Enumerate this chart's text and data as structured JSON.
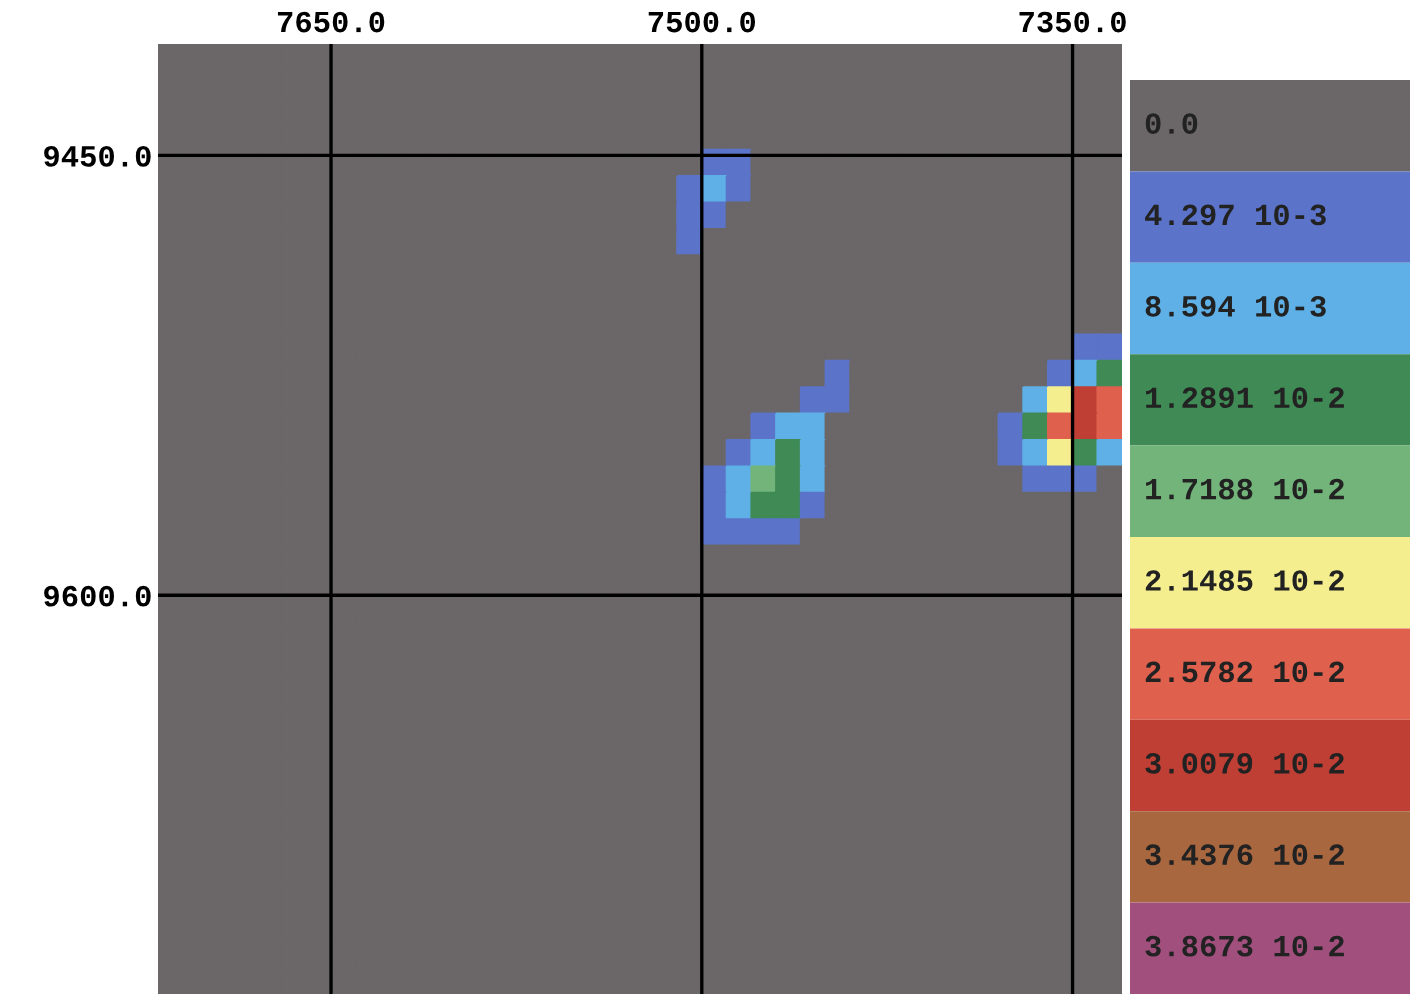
{
  "chart_data": {
    "type": "heatmap",
    "xlim": [
      7720,
      7330
    ],
    "ylim": [
      9736,
      9412
    ],
    "xticks": [
      {
        "value": 7650,
        "label": "7650.0"
      },
      {
        "value": 7500,
        "label": "7500.0"
      },
      {
        "value": 7350,
        "label": "7350.0"
      }
    ],
    "yticks": [
      {
        "value": 9450,
        "label": "9450.0"
      },
      {
        "value": 9600,
        "label": "9600.0"
      }
    ],
    "grid": true,
    "clim": [
      -0.0021485,
      0.0408215
    ],
    "cticks": [
      {
        "value": 0,
        "label": "0.0"
      },
      {
        "value": 0.004297,
        "label": "4.297 10-3"
      },
      {
        "value": 0.008594,
        "label": "8.594 10-3"
      },
      {
        "value": 0.012891,
        "label": "1.2891 10-2"
      },
      {
        "value": 0.017188,
        "label": "1.7188 10-2"
      },
      {
        "value": 0.021485,
        "label": "2.1485 10-2"
      },
      {
        "value": 0.025782,
        "label": "2.5782 10-2"
      },
      {
        "value": 0.030079,
        "label": "3.0079 10-2"
      },
      {
        "value": 0.034376,
        "label": "3.4376 10-2"
      },
      {
        "value": 0.038673,
        "label": "3.8673 10-2"
      }
    ],
    "colors": [
      "#6b6769",
      "#5b74c9",
      "#5fb0e6",
      "#3f8a55",
      "#72b47a",
      "#f4ee8e",
      "#e0604e",
      "#bf3f35",
      "#a8673f",
      "#a1507e"
    ],
    "cells": [
      [
        0,
        0,
        0,
        0,
        0,
        0,
        0,
        0,
        0,
        0,
        0,
        0,
        0,
        0,
        0,
        0,
        0,
        0,
        0,
        0,
        0,
        0,
        0,
        0,
        0,
        0,
        0,
        0,
        0,
        0,
        0,
        0,
        0,
        0,
        0,
        0,
        0,
        0,
        0
      ],
      [
        0,
        0,
        0,
        0,
        0,
        0,
        0,
        0,
        0,
        0,
        0,
        0,
        0,
        0,
        0,
        0,
        0,
        0,
        0,
        0,
        0,
        0,
        0,
        0,
        0,
        0,
        0,
        0,
        0,
        0,
        0,
        0,
        0,
        0,
        0,
        0,
        0,
        0,
        0
      ],
      [
        0,
        0,
        0,
        0,
        0,
        0,
        0,
        0,
        0,
        0,
        0,
        0,
        0,
        0,
        0,
        0,
        0,
        0,
        0,
        0,
        0,
        0,
        0,
        0,
        0,
        0,
        0,
        0,
        0,
        0,
        0,
        0,
        0,
        0,
        0,
        0,
        0,
        0,
        0
      ],
      [
        0,
        0,
        0,
        0,
        0,
        0,
        0,
        0,
        0,
        0,
        0,
        0,
        0,
        0,
        0,
        0,
        0,
        0,
        0,
        0,
        0,
        0,
        0,
        0,
        0,
        0,
        0,
        0,
        0,
        0,
        0,
        0,
        0,
        0,
        0,
        0,
        0,
        0,
        0
      ],
      [
        0,
        0,
        0,
        0,
        0,
        0,
        0,
        0,
        0,
        0,
        0,
        0,
        0,
        0,
        0,
        0,
        0,
        0,
        0,
        0,
        0,
        0,
        0.004297,
        0.004297,
        0,
        0,
        0,
        0,
        0,
        0,
        0,
        0,
        0,
        0,
        0,
        0,
        0,
        0,
        0
      ],
      [
        0,
        0,
        0,
        0,
        0,
        0,
        0,
        0,
        0,
        0,
        0,
        0,
        0,
        0,
        0,
        0,
        0,
        0,
        0,
        0,
        0,
        0.004297,
        0.008594,
        0.004297,
        0,
        0,
        0,
        0,
        0,
        0,
        0,
        0,
        0,
        0,
        0,
        0,
        0,
        0,
        0
      ],
      [
        0,
        0,
        0,
        0,
        0,
        0,
        0,
        0,
        0,
        0,
        0,
        0,
        0,
        0,
        0,
        0,
        0,
        0,
        0,
        0,
        0,
        0.004297,
        0.004297,
        0,
        0,
        0,
        0,
        0,
        0,
        0,
        0,
        0,
        0,
        0,
        0,
        0,
        0,
        0,
        0
      ],
      [
        0,
        0,
        0,
        0,
        0,
        0,
        0,
        0,
        0,
        0,
        0,
        0,
        0,
        0,
        0,
        0,
        0,
        0,
        0,
        0,
        0,
        0.004297,
        0,
        0,
        0,
        0,
        0,
        0,
        0,
        0,
        0,
        0,
        0,
        0,
        0,
        0,
        0,
        0,
        0
      ],
      [
        0,
        0,
        0,
        0,
        0,
        0,
        0,
        0,
        0,
        0,
        0,
        0,
        0,
        0,
        0,
        0,
        0,
        0,
        0,
        0,
        0,
        0,
        0,
        0,
        0,
        0,
        0,
        0,
        0,
        0,
        0,
        0,
        0,
        0,
        0,
        0,
        0,
        0,
        0
      ],
      [
        0,
        0,
        0,
        0,
        0,
        0,
        0,
        0,
        0,
        0,
        0,
        0,
        0,
        0,
        0,
        0,
        0,
        0,
        0,
        0,
        0,
        0,
        0,
        0,
        0,
        0,
        0,
        0,
        0,
        0,
        0,
        0,
        0,
        0,
        0,
        0,
        0,
        0,
        0
      ],
      [
        0,
        0,
        0,
        0,
        0,
        0,
        0,
        0,
        0,
        0,
        0,
        0,
        0,
        0,
        0,
        0,
        0,
        0,
        0,
        0,
        0,
        0,
        0,
        0,
        0,
        0,
        0,
        0,
        0,
        0,
        0,
        0,
        0,
        0,
        0,
        0,
        0,
        0,
        0
      ],
      [
        0,
        0,
        0,
        0,
        0,
        0,
        0,
        0,
        0,
        0,
        0,
        0,
        0,
        0,
        0,
        0,
        0,
        0,
        0,
        0,
        0,
        0,
        0,
        0,
        0,
        0,
        0,
        0,
        0,
        0,
        0,
        0,
        0,
        0,
        0,
        0,
        0,
        0.004297,
        0.004297
      ],
      [
        0,
        0,
        0,
        0,
        0,
        0,
        0,
        0,
        0,
        0,
        0,
        0,
        0,
        0,
        0,
        0,
        0,
        0,
        0,
        0,
        0,
        0,
        0,
        0,
        0,
        0,
        0,
        0.004297,
        0,
        0,
        0,
        0,
        0,
        0,
        0,
        0,
        0.004297,
        0.008594,
        0.012891
      ],
      [
        0,
        0,
        0,
        0,
        0,
        0,
        0,
        0,
        0,
        0,
        0,
        0,
        0,
        0,
        0,
        0,
        0,
        0,
        0,
        0,
        0,
        0,
        0,
        0,
        0,
        0,
        0.004297,
        0.004297,
        0,
        0,
        0,
        0,
        0,
        0,
        0,
        0.008594,
        0.021485,
        0.030079,
        0.025782
      ],
      [
        0,
        0,
        0,
        0,
        0,
        0,
        0,
        0,
        0,
        0,
        0,
        0,
        0,
        0,
        0,
        0,
        0,
        0,
        0,
        0,
        0,
        0,
        0,
        0,
        0.004297,
        0.008594,
        0.008594,
        0,
        0,
        0,
        0,
        0,
        0,
        0,
        0.004297,
        0.012891,
        0.025782,
        0.030079,
        0.025782
      ],
      [
        0,
        0,
        0,
        0,
        0,
        0,
        0,
        0,
        0,
        0,
        0,
        0,
        0,
        0,
        0,
        0,
        0,
        0,
        0,
        0,
        0,
        0,
        0,
        0.004297,
        0.008594,
        0.012891,
        0.008594,
        0,
        0,
        0,
        0,
        0,
        0,
        0,
        0.004297,
        0.008594,
        0.021485,
        0.012891,
        0.008594
      ],
      [
        0,
        0,
        0,
        0,
        0,
        0,
        0,
        0,
        0,
        0,
        0,
        0,
        0,
        0,
        0,
        0,
        0,
        0,
        0,
        0,
        0,
        0,
        0.004297,
        0.008594,
        0.017188,
        0.012891,
        0.008594,
        0,
        0,
        0,
        0,
        0,
        0,
        0,
        0,
        0.004297,
        0.004297,
        0.004297,
        0
      ],
      [
        0,
        0,
        0,
        0,
        0,
        0,
        0,
        0,
        0,
        0,
        0,
        0,
        0,
        0,
        0,
        0,
        0,
        0,
        0,
        0,
        0,
        0,
        0.004297,
        0.008594,
        0.012891,
        0.012891,
        0.004297,
        0,
        0,
        0,
        0,
        0,
        0,
        0,
        0,
        0,
        0,
        0,
        0
      ],
      [
        0,
        0,
        0,
        0,
        0,
        0,
        0,
        0,
        0,
        0,
        0,
        0,
        0,
        0,
        0,
        0,
        0,
        0,
        0,
        0,
        0,
        0,
        0.004297,
        0.004297,
        0.004297,
        0.004297,
        0,
        0,
        0,
        0,
        0,
        0,
        0,
        0,
        0,
        0,
        0,
        0,
        0
      ],
      [
        0,
        0,
        0,
        0,
        0,
        0,
        0,
        0,
        0,
        0,
        0,
        0,
        0,
        0,
        0,
        0,
        0,
        0,
        0,
        0,
        0,
        0,
        0,
        0,
        0,
        0,
        0,
        0,
        0,
        0,
        0,
        0,
        0,
        0,
        0,
        0,
        0,
        0,
        0
      ],
      [
        0,
        0,
        0,
        0,
        0,
        0,
        0,
        0,
        0,
        0,
        0,
        0,
        0,
        0,
        0,
        0,
        0,
        0,
        0,
        0,
        0,
        0,
        0,
        0,
        0,
        0,
        0,
        0,
        0,
        0,
        0,
        0,
        0,
        0,
        0,
        0,
        0,
        0,
        0
      ],
      [
        0,
        0,
        0,
        0,
        0,
        0,
        0,
        0,
        0,
        0,
        0,
        0,
        0,
        0,
        0,
        0,
        0,
        0,
        0,
        0,
        0,
        0,
        0,
        0,
        0,
        0,
        0,
        0,
        0,
        0,
        0,
        0,
        0,
        0,
        0,
        0,
        0,
        0,
        0
      ],
      [
        0,
        0,
        0,
        0,
        0,
        0,
        0,
        0,
        0,
        0,
        0,
        0,
        0,
        0,
        0,
        0,
        0,
        0,
        0,
        0,
        0,
        0,
        0,
        0,
        0,
        0,
        0,
        0,
        0,
        0,
        0,
        0,
        0,
        0,
        0,
        0,
        0,
        0,
        0
      ],
      [
        0,
        0,
        0,
        0,
        0,
        0,
        0,
        0,
        0,
        0,
        0,
        0,
        0,
        0,
        0,
        0,
        0,
        0,
        0,
        0,
        0,
        0,
        0,
        0,
        0,
        0,
        0,
        0,
        0,
        0,
        0,
        0,
        0,
        0,
        0,
        0,
        0,
        0,
        0
      ],
      [
        0,
        0,
        0,
        0,
        0,
        0,
        0,
        0,
        0,
        0,
        0,
        0,
        0,
        0,
        0,
        0,
        0,
        0,
        0,
        0,
        0,
        0,
        0,
        0,
        0,
        0,
        0,
        0,
        0,
        0,
        0,
        0,
        0,
        0,
        0,
        0,
        0,
        0,
        0
      ],
      [
        0,
        0,
        0,
        0,
        0,
        0,
        0,
        0,
        0,
        0,
        0,
        0,
        0,
        0,
        0,
        0,
        0,
        0,
        0,
        0,
        0,
        0,
        0,
        0,
        0,
        0,
        0,
        0,
        0,
        0,
        0,
        0,
        0,
        0,
        0,
        0,
        0,
        0,
        0
      ],
      [
        0,
        0,
        0,
        0,
        0,
        0,
        0,
        0,
        0,
        0,
        0,
        0,
        0,
        0,
        0,
        0,
        0,
        0,
        0,
        0,
        0,
        0,
        0,
        0,
        0,
        0,
        0,
        0,
        0,
        0,
        0,
        0,
        0,
        0,
        0,
        0,
        0,
        0,
        0
      ],
      [
        0,
        0,
        0,
        0,
        0,
        0,
        0,
        0,
        0,
        0,
        0,
        0,
        0,
        0,
        0,
        0,
        0,
        0,
        0,
        0,
        0,
        0,
        0,
        0,
        0,
        0,
        0,
        0,
        0,
        0,
        0,
        0,
        0,
        0,
        0,
        0,
        0,
        0,
        0
      ],
      [
        0,
        0,
        0,
        0,
        0,
        0,
        0,
        0,
        0,
        0,
        0,
        0,
        0,
        0,
        0,
        0,
        0,
        0,
        0,
        0,
        0,
        0,
        0,
        0,
        0,
        0,
        0,
        0,
        0,
        0,
        0,
        0,
        0,
        0,
        0,
        0,
        0,
        0,
        0
      ],
      [
        0,
        0,
        0,
        0,
        0,
        0,
        0,
        0,
        0,
        0,
        0,
        0,
        0,
        0,
        0,
        0,
        0,
        0,
        0,
        0,
        0,
        0,
        0,
        0,
        0,
        0,
        0,
        0,
        0,
        0,
        0,
        0,
        0,
        0,
        0,
        0,
        0,
        0,
        0
      ],
      [
        0,
        0,
        0,
        0,
        0,
        0,
        0,
        0,
        0,
        0,
        0,
        0,
        0,
        0,
        0,
        0,
        0,
        0,
        0,
        0,
        0,
        0,
        0,
        0,
        0,
        0,
        0,
        0,
        0,
        0,
        0,
        0,
        0,
        0,
        0,
        0,
        0,
        0,
        0
      ],
      [
        0,
        0,
        0,
        0,
        0,
        0,
        0,
        0,
        0,
        0,
        0,
        0,
        0,
        0,
        0,
        0,
        0,
        0,
        0,
        0,
        0,
        0,
        0,
        0,
        0,
        0,
        0,
        0,
        0,
        0,
        0,
        0,
        0,
        0,
        0,
        0,
        0,
        0,
        0
      ],
      [
        0,
        0,
        0,
        0,
        0,
        0,
        0,
        0,
        0,
        0,
        0,
        0,
        0,
        0,
        0,
        0,
        0,
        0,
        0,
        0,
        0,
        0,
        0,
        0,
        0,
        0,
        0,
        0,
        0,
        0,
        0,
        0,
        0,
        0,
        0,
        0,
        0,
        0,
        0
      ],
      [
        0,
        0,
        0,
        0,
        0,
        0,
        0,
        0,
        0,
        0,
        0,
        0,
        0,
        0,
        0,
        0,
        0,
        0,
        0,
        0,
        0,
        0,
        0,
        0,
        0,
        0,
        0,
        0,
        0,
        0,
        0,
        0,
        0,
        0,
        0,
        0,
        0,
        0,
        0
      ],
      [
        0,
        0,
        0,
        0,
        0,
        0,
        0,
        0,
        0,
        0,
        0,
        0,
        0,
        0,
        0,
        0,
        0,
        0,
        0,
        0,
        0,
        0,
        0,
        0,
        0,
        0,
        0,
        0,
        0,
        0,
        0,
        0,
        0,
        0,
        0,
        0,
        0,
        0,
        0
      ],
      [
        0,
        0,
        0,
        0,
        0,
        0,
        0,
        0,
        0,
        0,
        0,
        0,
        0,
        0,
        0,
        0,
        0,
        0,
        0,
        0,
        0,
        0,
        0,
        0,
        0,
        0,
        0,
        0,
        0,
        0,
        0,
        0,
        0,
        0,
        0,
        0,
        0,
        0,
        0
      ]
    ]
  }
}
